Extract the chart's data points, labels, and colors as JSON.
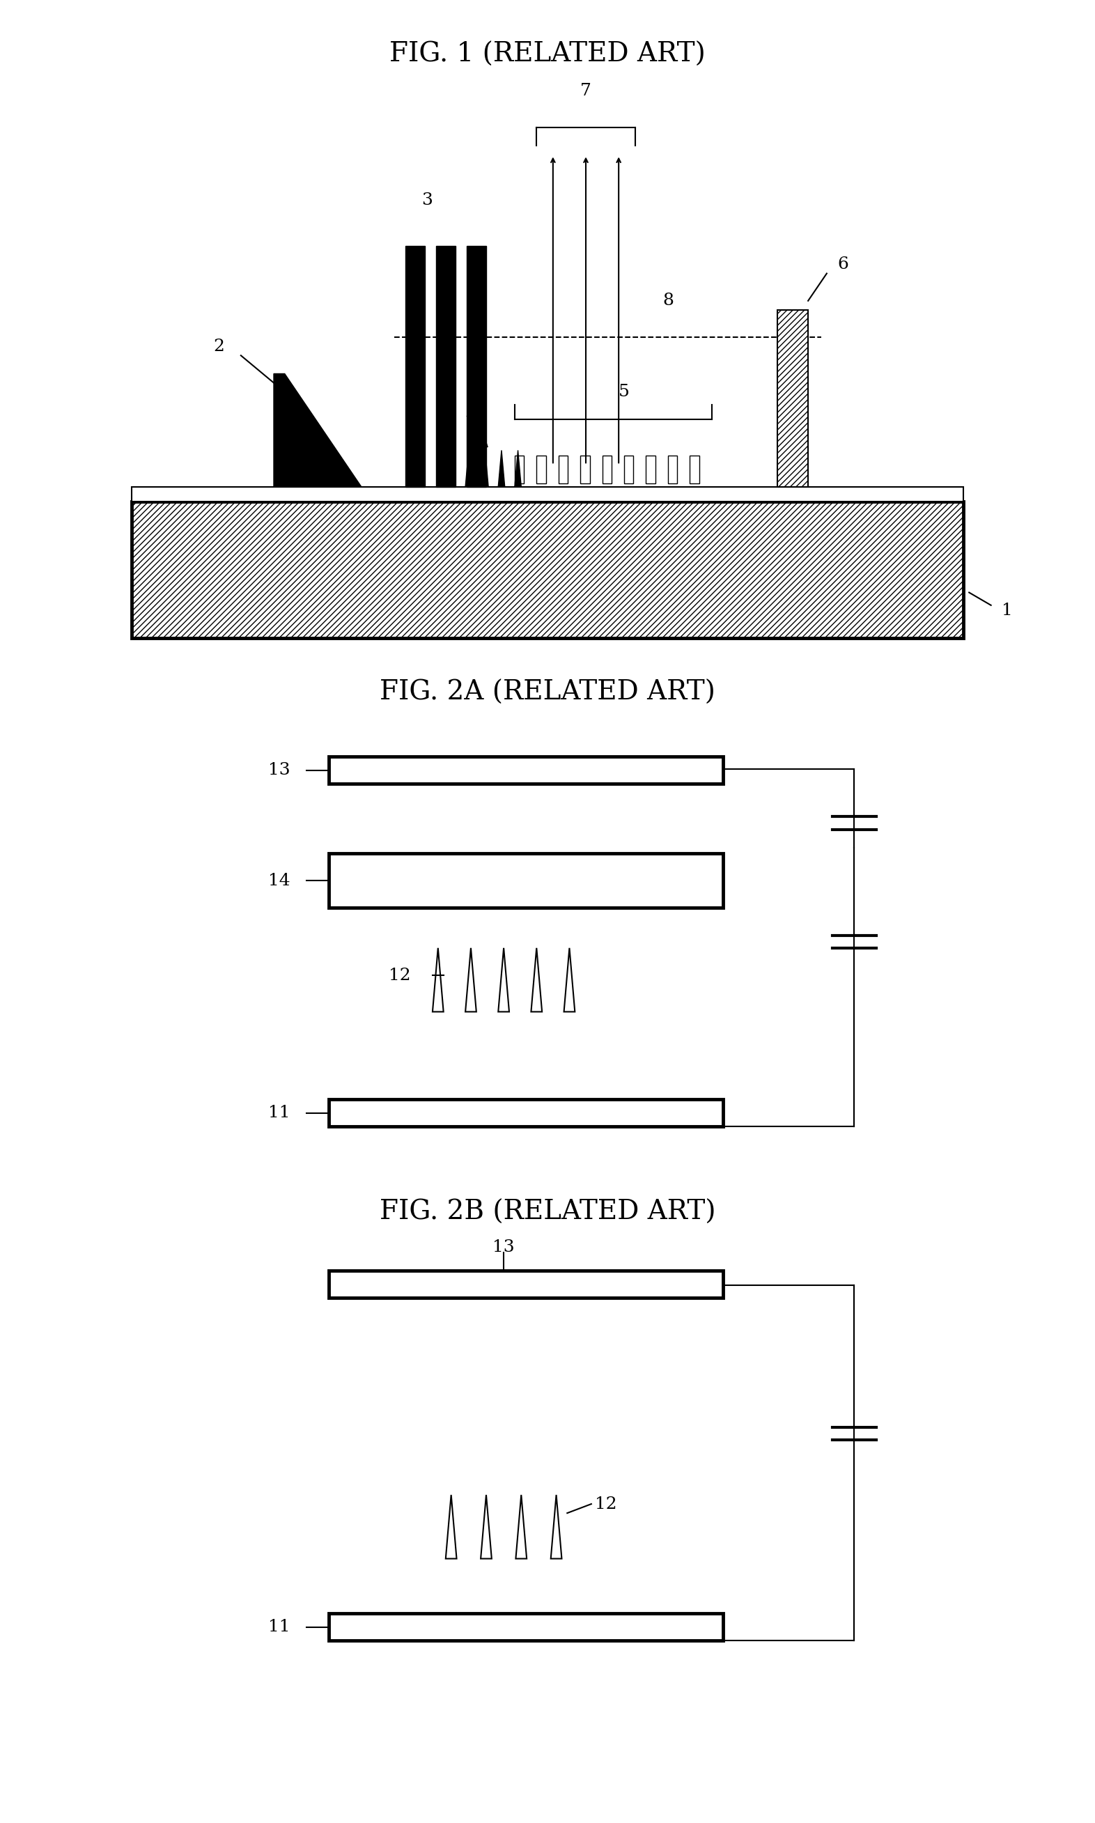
{
  "bg_color": "#ffffff",
  "fig_width": 15.72,
  "fig_height": 26.17,
  "title1": "FIG. 1 (RELATED ART)",
  "title2": "FIG. 2A (RELATED ART)",
  "title3": "FIG. 2B (RELATED ART)",
  "title_fontsize": 28,
  "label_fontsize": 18,
  "line_color": "#000000"
}
